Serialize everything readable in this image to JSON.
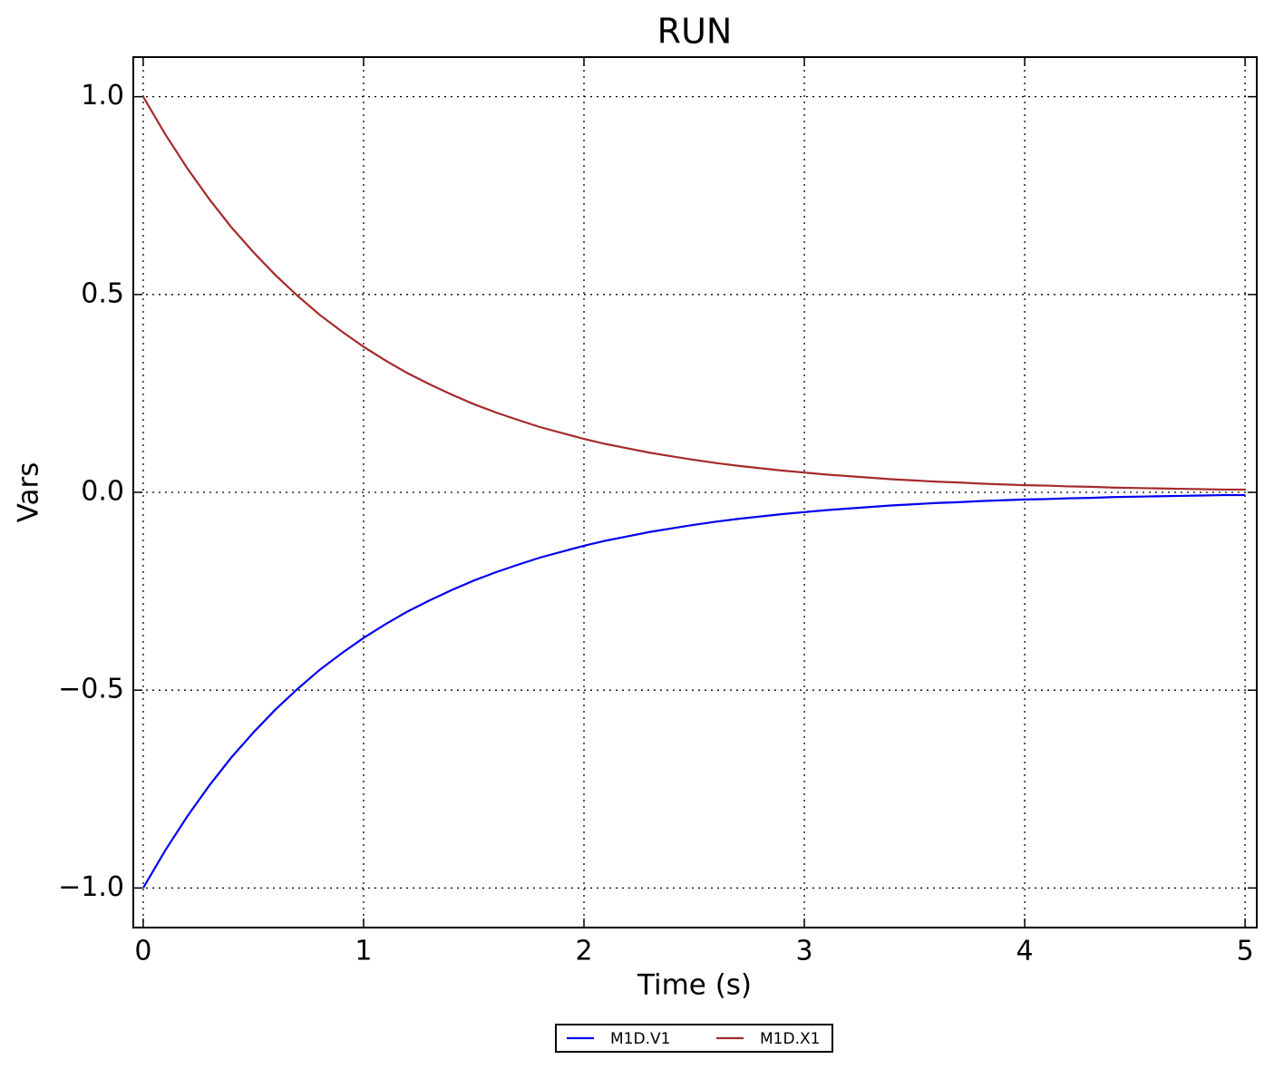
{
  "chart_data": {
    "type": "line",
    "title": "RUN",
    "xlabel": "Time (s)",
    "ylabel": "Vars",
    "x": [
      0,
      0.1,
      0.2,
      0.3,
      0.4,
      0.5,
      0.6,
      0.7,
      0.8,
      0.9,
      1,
      1.1,
      1.2,
      1.3,
      1.4,
      1.5,
      1.6,
      1.7,
      1.8,
      1.9,
      2,
      2.1,
      2.2,
      2.3,
      2.4,
      2.5,
      2.6,
      2.7,
      2.8,
      2.9,
      3,
      3.1,
      3.2,
      3.3,
      3.4,
      3.5,
      3.6,
      3.7,
      3.8,
      3.9,
      4,
      4.1,
      4.2,
      4.3,
      4.4,
      4.5,
      4.6,
      4.7,
      4.8,
      4.9,
      5
    ],
    "series": [
      {
        "name": "M1D.V1",
        "color": "#0000ee",
        "values": [
          -1,
          -0.905,
          -0.819,
          -0.741,
          -0.67,
          -0.607,
          -0.549,
          -0.497,
          -0.449,
          -0.407,
          -0.368,
          -0.333,
          -0.301,
          -0.273,
          -0.247,
          -0.223,
          -0.202,
          -0.183,
          -0.165,
          -0.15,
          -0.135,
          -0.122,
          -0.111,
          -0.1,
          -0.091,
          -0.082,
          -0.074,
          -0.067,
          -0.061,
          -0.055,
          -0.05,
          -0.045,
          -0.041,
          -0.037,
          -0.033,
          -0.03,
          -0.027,
          -0.025,
          -0.022,
          -0.02,
          -0.018,
          -0.017,
          -0.015,
          -0.014,
          -0.012,
          -0.011,
          -0.01,
          -0.009,
          -0.008,
          -0.007,
          -0.007
        ]
      },
      {
        "name": "M1D.X1",
        "color": "#a52a2a",
        "values": [
          1,
          0.905,
          0.819,
          0.741,
          0.67,
          0.607,
          0.549,
          0.497,
          0.449,
          0.407,
          0.368,
          0.333,
          0.301,
          0.273,
          0.247,
          0.223,
          0.202,
          0.183,
          0.165,
          0.15,
          0.135,
          0.122,
          0.111,
          0.1,
          0.091,
          0.082,
          0.074,
          0.067,
          0.061,
          0.055,
          0.05,
          0.045,
          0.041,
          0.037,
          0.033,
          0.03,
          0.027,
          0.025,
          0.022,
          0.02,
          0.018,
          0.017,
          0.015,
          0.014,
          0.012,
          0.011,
          0.01,
          0.009,
          0.008,
          0.007,
          0.007
        ]
      }
    ],
    "xlim": [
      -0.045,
      5.053
    ],
    "xticks": [
      0,
      1,
      2,
      3,
      4,
      5
    ],
    "ylim": [
      -1.1,
      1.1
    ],
    "yticks": [
      {
        "value": -1,
        "label": "−1.0"
      },
      {
        "value": -0.5,
        "label": "−0.5"
      },
      {
        "value": 0,
        "label": "0.0"
      },
      {
        "value": 0.5,
        "label": "0.5"
      },
      {
        "value": 1,
        "label": "1.0"
      }
    ],
    "grid": true,
    "legend": "bottom"
  }
}
